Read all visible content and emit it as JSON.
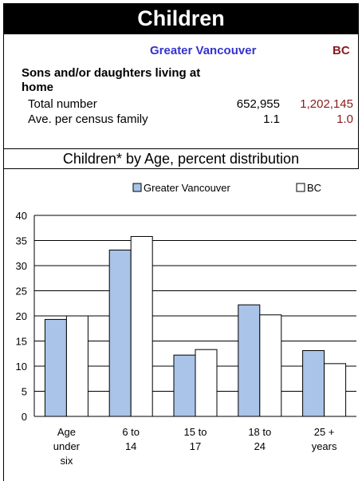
{
  "header": {
    "title": "Children"
  },
  "info": {
    "col_gv": "Greater Vancouver",
    "col_bc": "BC",
    "section_heading": "Sons and/or daughters living at home",
    "rows": [
      {
        "label": "Total number",
        "gv": "652,955",
        "bc": "1,202,145"
      },
      {
        "label": "Ave. per census family",
        "gv": "1.1",
        "bc": "1.0"
      }
    ]
  },
  "colors": {
    "title_bg": "#000000",
    "gv_header": "#3333cc",
    "bc_text": "#8b1a1a",
    "gv_bar": "#a9c4e8",
    "bc_bar": "#ffffff"
  },
  "chart_data": {
    "type": "bar",
    "title": "Children* by Age, percent distribution",
    "categories": [
      [
        "Age",
        "under",
        "six"
      ],
      [
        "6 to",
        "14"
      ],
      [
        "15 to",
        "17"
      ],
      [
        "18 to",
        "24"
      ],
      [
        "25 +",
        "years"
      ]
    ],
    "series": [
      {
        "name": "Greater Vancouver",
        "values": [
          19.3,
          33.1,
          12.2,
          22.2,
          13.1
        ],
        "color": "#a9c4e8"
      },
      {
        "name": "BC",
        "values": [
          20.0,
          35.8,
          13.3,
          20.2,
          10.5
        ],
        "color": "#ffffff"
      }
    ],
    "ylim": [
      0,
      40
    ],
    "yticks": [
      0,
      5,
      10,
      15,
      20,
      25,
      30,
      35,
      40
    ],
    "grid": true,
    "legend_position": "top"
  }
}
